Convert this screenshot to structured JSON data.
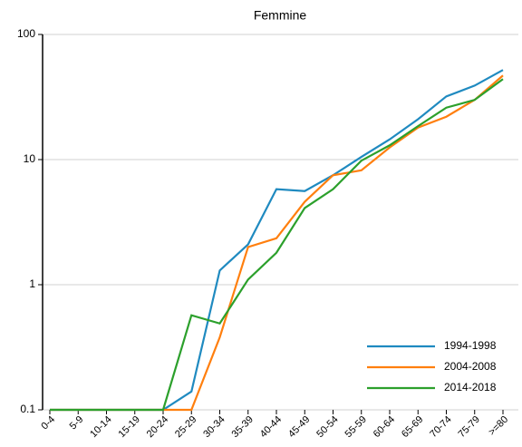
{
  "chart_data": {
    "type": "line",
    "title": "Femmine",
    "categories": [
      "0-4",
      "5-9",
      "10-14",
      "15-19",
      "20-24",
      "25-29",
      "30-34",
      "35-39",
      "40-44",
      "45-49",
      "50-54",
      "55-59",
      "60-64",
      "65-69",
      "70-74",
      "75-79",
      ">=80"
    ],
    "series": [
      {
        "name": "1994-1998",
        "color": "#1f8ac0",
        "values": [
          0.1,
          0.1,
          0.1,
          0.1,
          0.1,
          0.14,
          1.3,
          2.1,
          5.8,
          5.6,
          7.5,
          10.5,
          14.5,
          21,
          32,
          39,
          52
        ]
      },
      {
        "name": "2004-2008",
        "color": "#ff7f0e",
        "values": [
          0.1,
          0.1,
          0.1,
          0.1,
          0.1,
          0.1,
          0.38,
          2.0,
          2.35,
          4.6,
          7.5,
          8.2,
          12.5,
          18,
          22,
          30,
          47
        ]
      },
      {
        "name": "2014-2018",
        "color": "#2ca02c",
        "values": [
          0.1,
          0.1,
          0.1,
          0.1,
          0.1,
          0.57,
          0.49,
          1.1,
          1.8,
          4.1,
          5.8,
          9.8,
          13,
          18.5,
          26,
          30,
          44
        ]
      }
    ],
    "ylim": [
      0.1,
      100
    ],
    "yticks": [
      0.1,
      1,
      10,
      100
    ],
    "log_y": true,
    "grid": true,
    "legend": "lower right"
  }
}
